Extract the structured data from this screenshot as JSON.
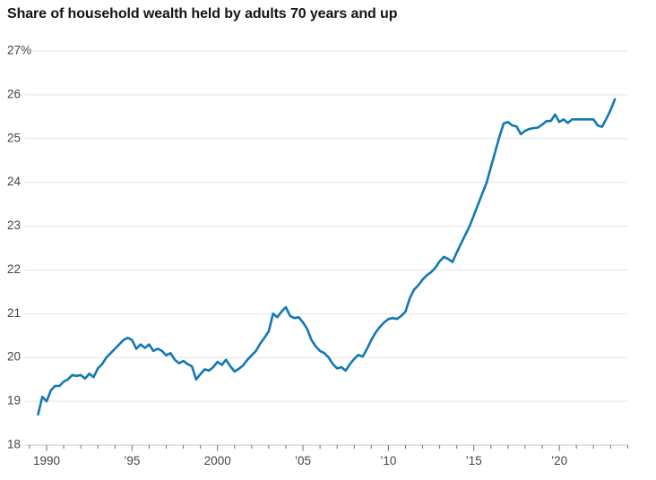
{
  "title": "Share of household wealth held by adults 70 years and up",
  "colors": {
    "line": "#1278b5",
    "grid": "#e4e4e4",
    "axis": "#c9c9c9",
    "tick": "#6e6e6e",
    "tick_label": "#444444",
    "title": "#141414",
    "background": "#ffffff"
  },
  "chart_data": {
    "type": "line",
    "title": "Share of household wealth held by adults 70 years and up",
    "xlabel": "",
    "ylabel": "",
    "unit": "%",
    "grid": true,
    "legend": "none",
    "ylim": [
      18,
      27
    ],
    "xlim": [
      1989,
      2024
    ],
    "y_ticks": [
      {
        "value": 27,
        "label": "27%"
      },
      {
        "value": 26,
        "label": "26"
      },
      {
        "value": 25,
        "label": "25"
      },
      {
        "value": 24,
        "label": "24"
      },
      {
        "value": 23,
        "label": "23"
      },
      {
        "value": 22,
        "label": "22"
      },
      {
        "value": 21,
        "label": "21"
      },
      {
        "value": 20,
        "label": "20"
      },
      {
        "value": 19,
        "label": "19"
      },
      {
        "value": 18,
        "label": "18"
      }
    ],
    "x_ticks": [
      {
        "year": 1990,
        "label": "1990"
      },
      {
        "year": 1995,
        "label": "’95"
      },
      {
        "year": 2000,
        "label": "2000"
      },
      {
        "year": 2005,
        "label": "’05"
      },
      {
        "year": 2010,
        "label": "’10"
      },
      {
        "year": 2015,
        "label": "’15"
      },
      {
        "year": 2020,
        "label": "’20"
      }
    ],
    "x_minor_ticks": {
      "from": 1989,
      "to": 2024,
      "step": 1
    },
    "series_name": "Share of household wealth held by adults 70 years and up",
    "x_start": 1989.5,
    "x_step": 0.25,
    "values": [
      18.7,
      19.1,
      19.0,
      19.25,
      19.35,
      19.35,
      19.45,
      19.5,
      19.6,
      19.58,
      19.6,
      19.52,
      19.63,
      19.55,
      19.75,
      19.85,
      20.0,
      20.1,
      20.2,
      20.3,
      20.4,
      20.45,
      20.4,
      20.2,
      20.3,
      20.22,
      20.3,
      20.15,
      20.2,
      20.15,
      20.05,
      20.1,
      19.95,
      19.87,
      19.92,
      19.85,
      19.8,
      19.5,
      19.62,
      19.73,
      19.7,
      19.78,
      19.9,
      19.83,
      19.95,
      19.8,
      19.68,
      19.74,
      19.82,
      19.95,
      20.05,
      20.15,
      20.32,
      20.45,
      20.6,
      21.0,
      20.92,
      21.05,
      21.15,
      20.95,
      20.9,
      20.92,
      20.8,
      20.65,
      20.4,
      20.25,
      20.15,
      20.1,
      20.0,
      19.85,
      19.75,
      19.78,
      19.7,
      19.85,
      19.97,
      20.06,
      20.02,
      20.2,
      20.4,
      20.57,
      20.7,
      20.8,
      20.88,
      20.9,
      20.88,
      20.95,
      21.05,
      21.35,
      21.55,
      21.65,
      21.78,
      21.88,
      21.95,
      22.05,
      22.2,
      22.3,
      22.25,
      22.18,
      22.4,
      22.6,
      22.8,
      23.0,
      23.25,
      23.5,
      23.75,
      24.0,
      24.35,
      24.7,
      25.05,
      25.35,
      25.38,
      25.3,
      25.28,
      25.1,
      25.18,
      25.22,
      25.24,
      25.25,
      25.32,
      25.4,
      25.4,
      25.55,
      25.38,
      25.44,
      25.36,
      25.44,
      25.44,
      25.44,
      25.44,
      25.44,
      25.44,
      25.3,
      25.27,
      25.45,
      25.65,
      25.9
    ]
  }
}
